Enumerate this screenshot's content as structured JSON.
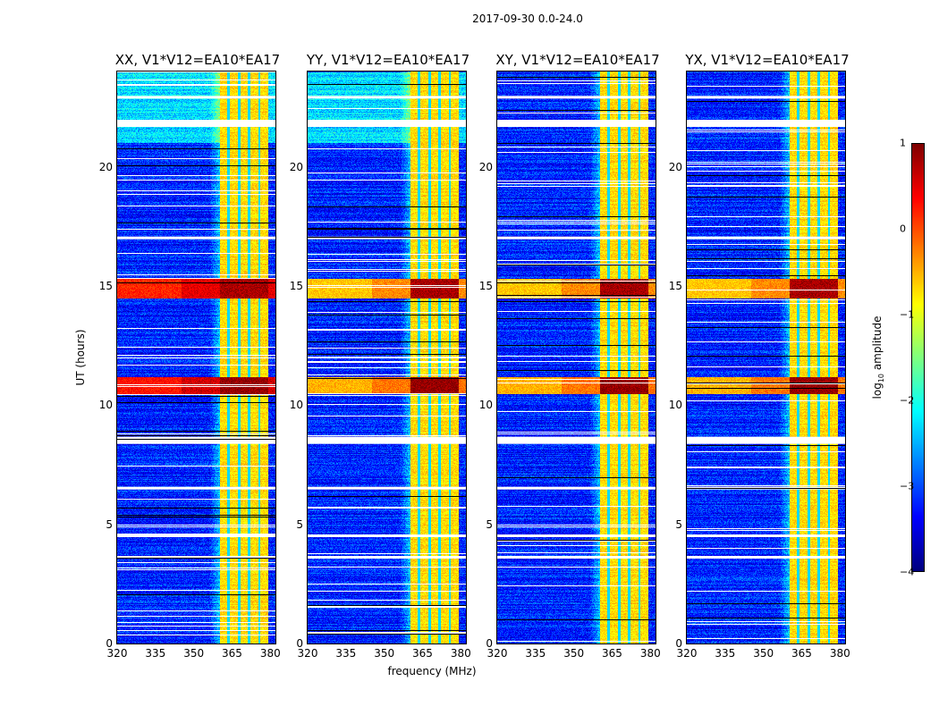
{
  "figure": {
    "suptitle": "2017-09-30 0.0-24.0",
    "xlabel": "frequency (MHz)",
    "ylabel": "UT (hours)",
    "colorbar": {
      "label_prefix": "log",
      "label_sub": "10",
      "label_suffix": " amplitude",
      "ticks": [
        "1",
        "0",
        "−1",
        "−2",
        "−3",
        "−4"
      ]
    }
  },
  "chart_data": {
    "type": "heatmap",
    "title": "2017-09-30 0.0-24.0",
    "xlabel": "frequency (MHz)",
    "ylabel": "UT (hours)",
    "xlim": [
      320,
      382
    ],
    "ylim": [
      0,
      24
    ],
    "xticks": [
      320,
      335,
      350,
      365,
      380
    ],
    "yticks": [
      0,
      5,
      10,
      15,
      20
    ],
    "colormap": "jet",
    "clim": [
      -4,
      1
    ],
    "colorbar_label": "log10 amplitude",
    "colorbar_ticks": [
      1,
      0,
      -1,
      -2,
      -3,
      -4
    ],
    "panels": [
      {
        "title": "XX, V1*V12=EA10*EA17",
        "polarization": "XX",
        "baseline": "V1*V12=EA10*EA17"
      },
      {
        "title": "YY, V1*V12=EA10*EA17",
        "polarization": "YY",
        "baseline": "V1*V12=EA10*EA17"
      },
      {
        "title": "XY, V1*V12=EA10*EA17",
        "polarization": "XY",
        "baseline": "V1*V12=EA10*EA17"
      },
      {
        "title": "YX, V1*V12=EA10*EA17",
        "polarization": "YX",
        "baseline": "V1*V12=EA10*EA17"
      }
    ],
    "features": {
      "strong_band_mhz": [
        360,
        379
      ],
      "band_gaps_mhz": [
        363.5,
        367.5,
        371.5,
        375.5
      ],
      "background_log10": -3.2,
      "band_level_log10": -0.7,
      "rfi_events_ut_hours": [
        {
          "ut": [
            10.5,
            11.2
          ],
          "level_log10": 0.6,
          "broadband": true
        },
        {
          "ut": [
            14.5,
            15.3
          ],
          "level_log10": 0.5,
          "broadband": true
        }
      ],
      "flagged_gaps_ut_hours": [
        3.6,
        4.5,
        6.5,
        8.6,
        17.0,
        21.9,
        22.9
      ]
    }
  }
}
